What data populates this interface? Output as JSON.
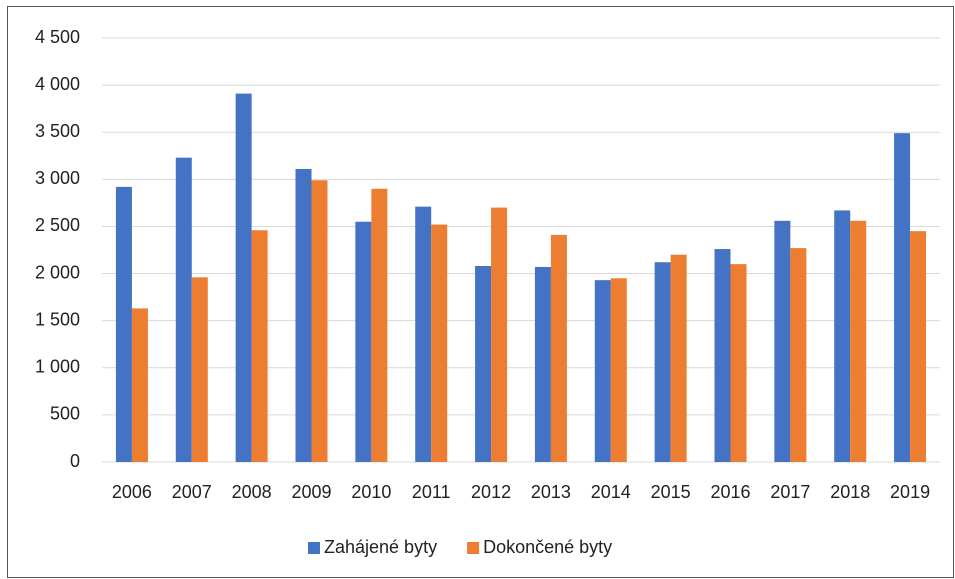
{
  "chart_data": {
    "type": "bar",
    "categories": [
      "2006",
      "2007",
      "2008",
      "2009",
      "2010",
      "2011",
      "2012",
      "2013",
      "2014",
      "2015",
      "2016",
      "2017",
      "2018",
      "2019"
    ],
    "series": [
      {
        "name": "Zahájené byty",
        "color": "#4472c4",
        "values": [
          2920,
          3230,
          3910,
          3110,
          2550,
          2710,
          2080,
          2070,
          1930,
          2120,
          2260,
          2560,
          2670,
          3490
        ]
      },
      {
        "name": "Dokončené byty",
        "color": "#ed7d31",
        "values": [
          1630,
          1960,
          2460,
          2990,
          2900,
          2520,
          2700,
          2410,
          1950,
          2200,
          2100,
          2270,
          2560,
          2450
        ]
      }
    ],
    "ylim": [
      0,
      4500
    ],
    "yticks": [
      0,
      500,
      {
        "value": 1000,
        "label": "1 000"
      },
      {
        "value": 1500,
        "label": "1 500"
      },
      {
        "value": 2000,
        "label": "2 000"
      },
      {
        "value": 2500,
        "label": "2 500"
      },
      {
        "value": 3000,
        "label": "3 000"
      },
      {
        "value": 3500,
        "label": "3 500"
      },
      {
        "value": 4000,
        "label": "4 000"
      },
      {
        "value": 4500,
        "label": "4 500"
      }
    ],
    "grid": true,
    "legend": "bottom"
  }
}
